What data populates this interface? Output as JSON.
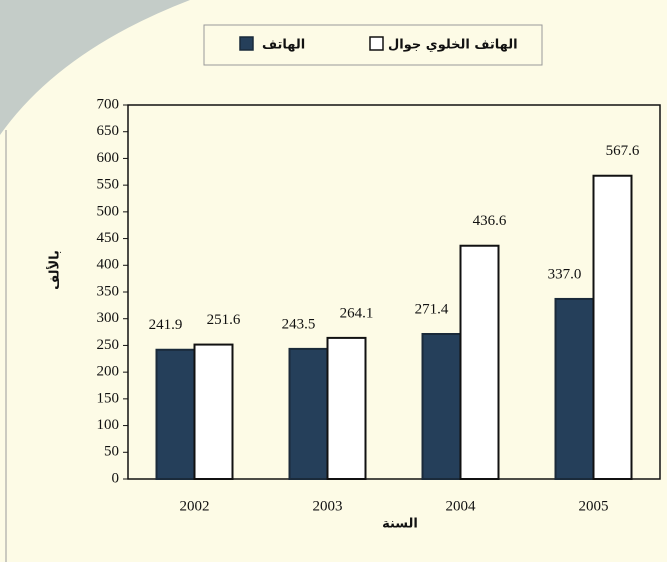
{
  "chart_data": {
    "type": "bar",
    "categories": [
      "2002",
      "2003",
      "2004",
      "2005"
    ],
    "series": [
      {
        "name": "الهاتف",
        "color": "#253f5a",
        "edgecolor": "#1a2a3a",
        "values": [
          241.9,
          243.5,
          271.4,
          337.0
        ],
        "value_labels": [
          "241.9",
          "243.5",
          "271.4",
          "337.0"
        ]
      },
      {
        "name": "الهاتف الخلوي جوال",
        "color": "#ffffff",
        "edgecolor": "#111111",
        "values": [
          251.6,
          264.1,
          436.6,
          567.6
        ]
      }
    ],
    "xlabel": "السنة",
    "ylabel": "بالألف",
    "ylim": [
      0,
      700
    ],
    "yticks": [
      0,
      50,
      100,
      150,
      200,
      250,
      300,
      350,
      400,
      450,
      500,
      550,
      600,
      650,
      700
    ],
    "grid": false,
    "legend": "top"
  }
}
